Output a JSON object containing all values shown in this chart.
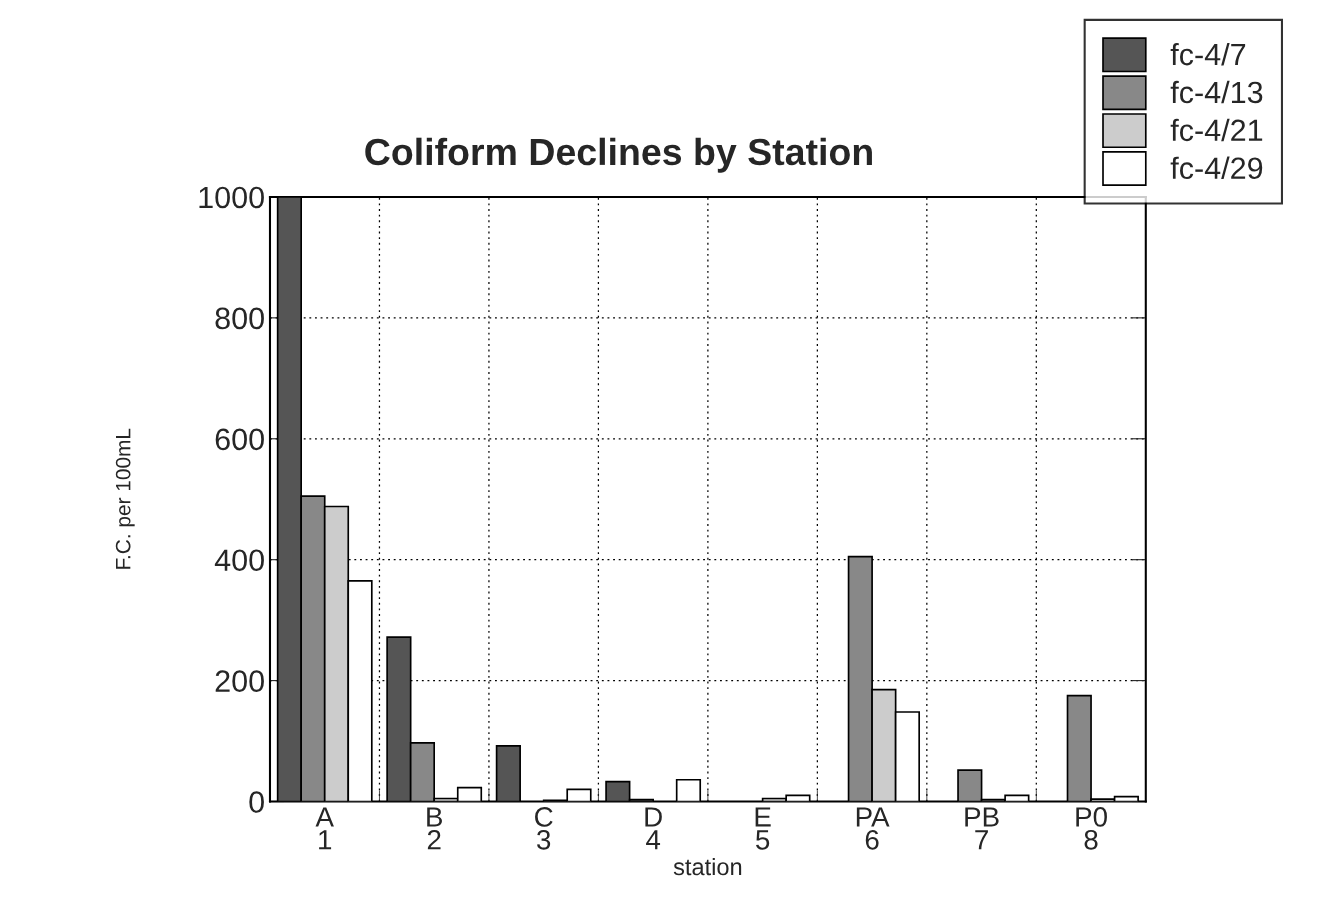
{
  "chart_data": {
    "type": "bar",
    "title": "Coliform Declines by Station",
    "xlabel": "station",
    "ylabel": "F.C. per 100mL",
    "categories": [
      "A\n1",
      "B\n2",
      "C\n3",
      "D\n4",
      "E\n5",
      "PA\n6",
      "PB\n7",
      "P0\n8"
    ],
    "series": [
      {
        "name": "fc-4/7",
        "color": "#555555",
        "values": [
          1000,
          272,
          92,
          33,
          null,
          null,
          null,
          null
        ]
      },
      {
        "name": "fc-4/13",
        "color": "#888888",
        "values": [
          505,
          97,
          null,
          3,
          null,
          405,
          52,
          175
        ]
      },
      {
        "name": "fc-4/21",
        "color": "#cccccc",
        "values": [
          488,
          5,
          2,
          null,
          5,
          185,
          3,
          4
        ]
      },
      {
        "name": "fc-4/29",
        "color": "#ffffff",
        "values": [
          365,
          23,
          20,
          36,
          10,
          148,
          10,
          8
        ]
      }
    ],
    "ylim": [
      0,
      1000
    ],
    "yticks": [
      0,
      200,
      400,
      600,
      800,
      1000
    ],
    "grid": true,
    "legend": "top right"
  }
}
